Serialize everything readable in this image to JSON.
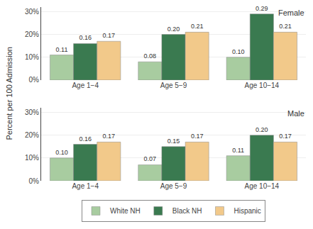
{
  "chart_data": [
    {
      "type": "bar",
      "title": "Female",
      "ylabel": "Percent per 100 Admission",
      "categories": [
        "Age 1−4",
        "Age 5−9",
        "Age 10−14"
      ],
      "series": [
        {
          "name": "White NH",
          "color": "#a8cca0",
          "values": [
            0.11,
            0.08,
            0.1
          ],
          "value_labels": [
            "0.11",
            "0.08",
            "0.10"
          ]
        },
        {
          "name": "Black NH",
          "color": "#3a7a50",
          "values": [
            0.16,
            0.2,
            0.29
          ],
          "value_labels": [
            "0.16",
            "0.20",
            "0.29"
          ]
        },
        {
          "name": "Hispanic",
          "color": "#f2c98a",
          "values": [
            0.17,
            0.21,
            0.21
          ],
          "value_labels": [
            "0.17",
            "0.21",
            "0.21"
          ]
        }
      ],
      "ylim": [
        0,
        0.32
      ],
      "yticks": [
        {
          "value": 0.0,
          "label": "0%"
        },
        {
          "value": 0.1,
          "label": "10%"
        },
        {
          "value": 0.2,
          "label": "20%"
        },
        {
          "value": 0.3,
          "label": "30%"
        }
      ],
      "grid": true,
      "data_labels": true,
      "legend": "bottom"
    },
    {
      "type": "bar",
      "title": "Male",
      "categories": [
        "Age 1−4",
        "Age 5−9",
        "Age 10−14"
      ],
      "series": [
        {
          "name": "White NH",
          "color": "#a8cca0",
          "values": [
            0.1,
            0.07,
            0.11
          ],
          "value_labels": [
            "0.10",
            "0.07",
            "0.11"
          ]
        },
        {
          "name": "Black NH",
          "color": "#3a7a50",
          "values": [
            0.16,
            0.15,
            0.2
          ],
          "value_labels": [
            "0.16",
            "0.15",
            "0.20"
          ]
        },
        {
          "name": "Hispanic",
          "color": "#f2c98a",
          "values": [
            0.17,
            0.17,
            0.17
          ],
          "value_labels": [
            "0.17",
            "0.17",
            "0.17"
          ]
        }
      ],
      "ylim": [
        0,
        0.32
      ],
      "yticks": [
        {
          "value": 0.0,
          "label": "0%"
        },
        {
          "value": 0.1,
          "label": "10%"
        },
        {
          "value": 0.2,
          "label": "20%"
        },
        {
          "value": 0.3,
          "label": "30%"
        }
      ],
      "grid": true,
      "data_labels": true
    }
  ]
}
